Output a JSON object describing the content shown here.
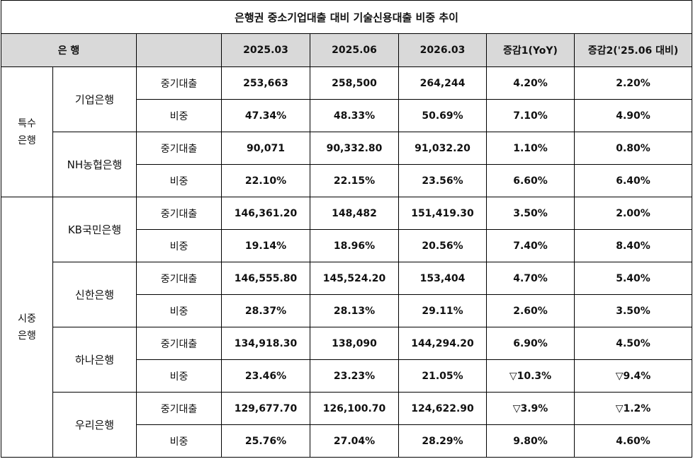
{
  "title": "은행권 중소기업대출 대비 기술신용대출 비중 추이",
  "headers": {
    "bank": "은 행",
    "blank": "",
    "col1": "2025.03",
    "col2": "2025.06",
    "col3": "2026.03",
    "col4": "증감1(YoY)",
    "col5": "증감2('25.06 대비)"
  },
  "groups": [
    {
      "label_line1": "특수",
      "label_line2": "은행",
      "banks": [
        {
          "name": "기업은행",
          "rows": [
            {
              "metric": "중기대출",
              "v1": "253,663",
              "v2": "258,500",
              "v3": "264,244",
              "d1": "4.20%",
              "d2": "2.20%"
            },
            {
              "metric": "비중",
              "v1": "47.34%",
              "v2": "48.33%",
              "v3": "50.69%",
              "d1": "7.10%",
              "d2": "4.90%"
            }
          ]
        },
        {
          "name": "NH농협은행",
          "rows": [
            {
              "metric": "중기대출",
              "v1": "90,071",
              "v2": "90,332.80",
              "v3": "91,032.20",
              "d1": "1.10%",
              "d2": "0.80%"
            },
            {
              "metric": "비중",
              "v1": "22.10%",
              "v2": "22.15%",
              "v3": "23.56%",
              "d1": "6.60%",
              "d2": "6.40%"
            }
          ]
        }
      ]
    },
    {
      "label_line1": "시중",
      "label_line2": "은행",
      "banks": [
        {
          "name": "KB국민은행",
          "rows": [
            {
              "metric": "중기대출",
              "v1": "146,361.20",
              "v2": "148,482",
              "v3": "151,419.30",
              "d1": "3.50%",
              "d2": "2.00%"
            },
            {
              "metric": "비중",
              "v1": "19.14%",
              "v2": "18.96%",
              "v3": "20.56%",
              "d1": "7.40%",
              "d2": "8.40%"
            }
          ]
        },
        {
          "name": "신한은행",
          "rows": [
            {
              "metric": "중기대출",
              "v1": "146,555.80",
              "v2": "145,524.20",
              "v3": "153,404",
              "d1": "4.70%",
              "d2": "5.40%"
            },
            {
              "metric": "비중",
              "v1": "28.37%",
              "v2": "28.13%",
              "v3": "29.11%",
              "d1": "2.60%",
              "d2": "3.50%"
            }
          ]
        },
        {
          "name": "하나은행",
          "rows": [
            {
              "metric": "중기대출",
              "v1": "134,918.30",
              "v2": "138,090",
              "v3": "144,294.20",
              "d1": "6.90%",
              "d2": "4.50%"
            },
            {
              "metric": "비중",
              "v1": "23.46%",
              "v2": "23.23%",
              "v3": "21.05%",
              "d1": "▽10.3%",
              "d2": "▽9.4%"
            }
          ]
        },
        {
          "name": "우리은행",
          "rows": [
            {
              "metric": "중기대출",
              "v1": "129,677.70",
              "v2": "126,100.70",
              "v3": "124,622.90",
              "d1": "▽3.9%",
              "d2": "▽1.2%"
            },
            {
              "metric": "비중",
              "v1": "25.76%",
              "v2": "27.04%",
              "v3": "28.29%",
              "d1": "9.80%",
              "d2": "4.60%"
            }
          ]
        }
      ]
    }
  ]
}
